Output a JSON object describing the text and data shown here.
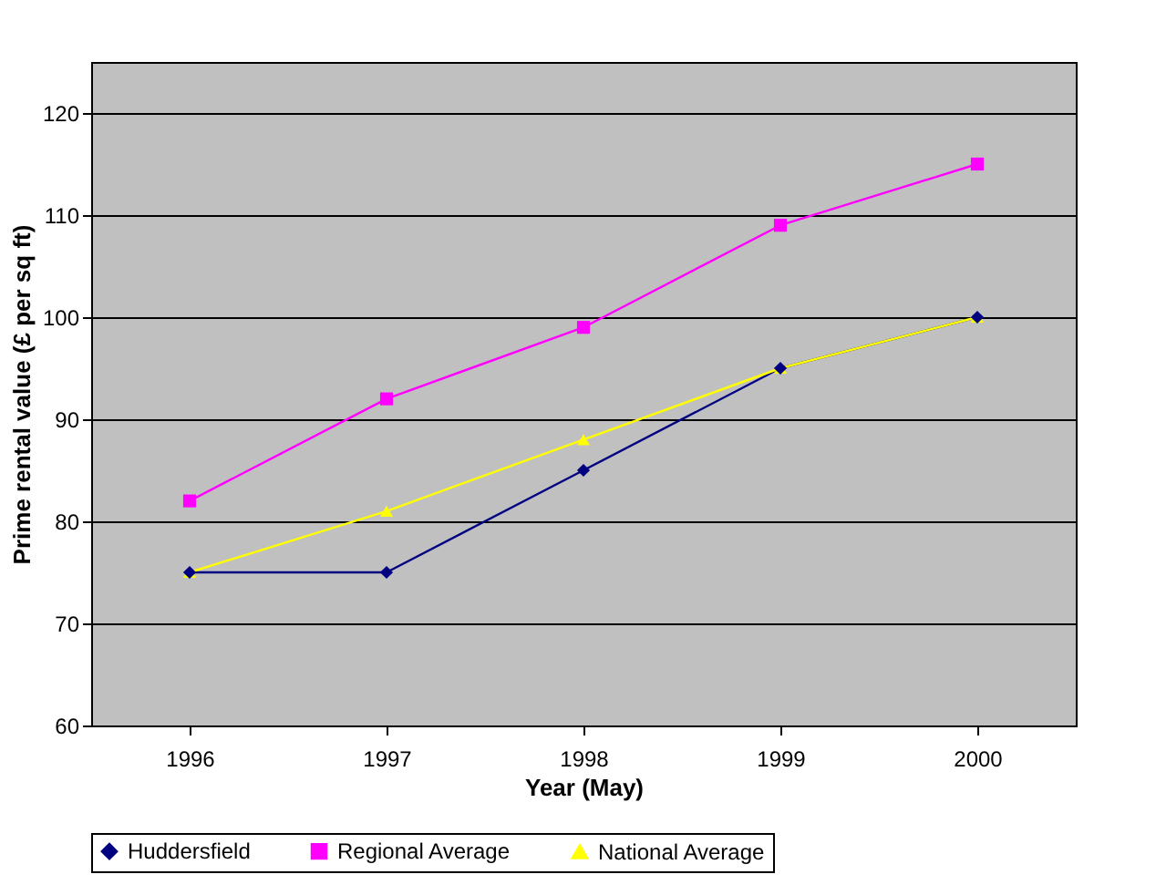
{
  "chart_data": {
    "type": "line",
    "xlabel": "Year (May)",
    "ylabel": "Prime rental value (£ per sq ft)",
    "categories": [
      "1996",
      "1997",
      "1998",
      "1999",
      "2000"
    ],
    "series": [
      {
        "name": "Huddersfield",
        "color": "#000080",
        "marker": "diamond",
        "values": [
          75,
          75,
          85,
          95,
          100
        ]
      },
      {
        "name": "Regional Average",
        "color": "#ff00ff",
        "marker": "square",
        "values": [
          82,
          92,
          99,
          109,
          115
        ]
      },
      {
        "name": "National Average",
        "color": "#ffff00",
        "marker": "triangle",
        "values": [
          75,
          81,
          88,
          95,
          100
        ]
      }
    ],
    "ylim": [
      60,
      125
    ],
    "yticks": [
      60,
      70,
      80,
      90,
      100,
      110,
      120
    ],
    "grid": "y",
    "legend": "bottom",
    "line_style": "solid"
  }
}
